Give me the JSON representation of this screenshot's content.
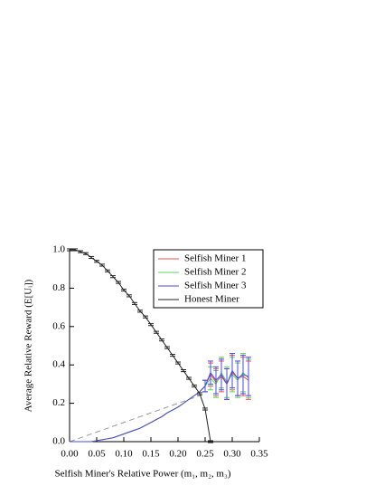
{
  "chart_data": {
    "type": "line",
    "xlabel": "Selfish Miner's Relative Power (m₁, m₂, m₃)",
    "ylabel": "Average Relative Reward (E[Uᵢ])",
    "x": [
      0,
      0.01,
      0.02,
      0.03,
      0.04,
      0.05,
      0.06,
      0.07,
      0.08,
      0.09,
      0.1,
      0.11,
      0.12,
      0.13,
      0.14,
      0.15,
      0.16,
      0.17,
      0.18,
      0.19,
      0.2,
      0.21,
      0.22,
      0.23,
      0.24,
      0.25,
      0.26,
      0.27,
      0.28,
      0.29,
      0.3,
      0.31,
      0.32,
      0.33
    ],
    "series": [
      {
        "name": "Selfish Miner 1",
        "color": "#e8534f",
        "values": [
          0,
          0,
          0,
          0,
          0,
          0.005,
          0.01,
          0.015,
          0.02,
          0.03,
          0.04,
          0.05,
          0.06,
          0.07,
          0.085,
          0.1,
          0.115,
          0.13,
          0.15,
          0.165,
          0.18,
          0.2,
          0.22,
          0.24,
          0.26,
          0.29,
          0.35,
          0.31,
          0.34,
          0.3,
          0.36,
          0.33,
          0.34,
          0.32
        ],
        "errors": [
          null,
          null,
          null,
          null,
          null,
          null,
          null,
          null,
          null,
          null,
          null,
          null,
          null,
          null,
          null,
          null,
          null,
          null,
          null,
          null,
          null,
          null,
          null,
          null,
          null,
          0.03,
          0.06,
          0.07,
          0.08,
          0.08,
          0.09,
          0.09,
          0.1,
          0.1
        ]
      },
      {
        "name": "Selfish Miner 2",
        "color": "#5fd35f",
        "values": [
          0,
          0,
          0,
          0,
          0,
          0.005,
          0.01,
          0.015,
          0.02,
          0.03,
          0.04,
          0.05,
          0.06,
          0.07,
          0.085,
          0.1,
          0.115,
          0.13,
          0.15,
          0.165,
          0.18,
          0.2,
          0.22,
          0.24,
          0.26,
          0.29,
          0.33,
          0.3,
          0.36,
          0.31,
          0.35,
          0.32,
          0.36,
          0.33
        ],
        "errors": [
          null,
          null,
          null,
          null,
          null,
          null,
          null,
          null,
          null,
          null,
          null,
          null,
          null,
          null,
          null,
          null,
          null,
          null,
          null,
          null,
          null,
          null,
          null,
          null,
          null,
          0.03,
          0.06,
          0.07,
          0.08,
          0.08,
          0.09,
          0.09,
          0.1,
          0.1
        ]
      },
      {
        "name": "Selfish Miner 3",
        "color": "#4a4ae0",
        "values": [
          0,
          0,
          0,
          0,
          0,
          0.005,
          0.01,
          0.015,
          0.02,
          0.03,
          0.04,
          0.05,
          0.06,
          0.07,
          0.085,
          0.1,
          0.115,
          0.13,
          0.15,
          0.165,
          0.18,
          0.2,
          0.22,
          0.24,
          0.26,
          0.29,
          0.36,
          0.32,
          0.35,
          0.3,
          0.37,
          0.33,
          0.35,
          0.34
        ],
        "errors": [
          null,
          null,
          null,
          null,
          null,
          null,
          null,
          null,
          null,
          null,
          null,
          null,
          null,
          null,
          null,
          null,
          null,
          null,
          null,
          null,
          null,
          null,
          null,
          null,
          null,
          0.03,
          0.06,
          0.07,
          0.08,
          0.08,
          0.09,
          0.09,
          0.1,
          0.1
        ]
      },
      {
        "name": "Honest Miner",
        "color": "#222222",
        "values": [
          1,
          1,
          0.99,
          0.98,
          0.96,
          0.94,
          0.92,
          0.89,
          0.86,
          0.83,
          0.79,
          0.76,
          0.72,
          0.68,
          0.65,
          0.61,
          0.57,
          0.53,
          0.49,
          0.45,
          0.41,
          0.37,
          0.33,
          0.29,
          0.25,
          0.17,
          0,
          null,
          null,
          null,
          null,
          null,
          null,
          null
        ],
        "errors": [
          0.005,
          0.005,
          0.005,
          0.005,
          0.005,
          0.005,
          0.005,
          0.005,
          0.005,
          0.005,
          0.005,
          0.005,
          0.005,
          0.005,
          0.005,
          0.005,
          0.005,
          0.005,
          0.005,
          0.005,
          0.005,
          0.005,
          0.005,
          0.005,
          0.005,
          0.005,
          0.005,
          null,
          null,
          null,
          null,
          null,
          null,
          null
        ]
      }
    ],
    "xlim": [
      0,
      0.35
    ],
    "xticks": [
      {
        "value": 0,
        "label": "0.00"
      },
      0.05,
      {
        "value": 0.1,
        "label": "0.10"
      },
      0.15,
      {
        "value": 0.2,
        "label": "0.20"
      },
      0.25,
      {
        "value": 0.3,
        "label": "0.30"
      },
      0.35
    ],
    "ylim": [
      0,
      1
    ],
    "yticks": [
      {
        "value": 0,
        "label": "0.0"
      },
      0.2,
      0.4,
      0.6,
      0.8,
      {
        "value": 1,
        "label": "1.0"
      }
    ],
    "diagonal_reference": true,
    "legend": "upper right"
  }
}
